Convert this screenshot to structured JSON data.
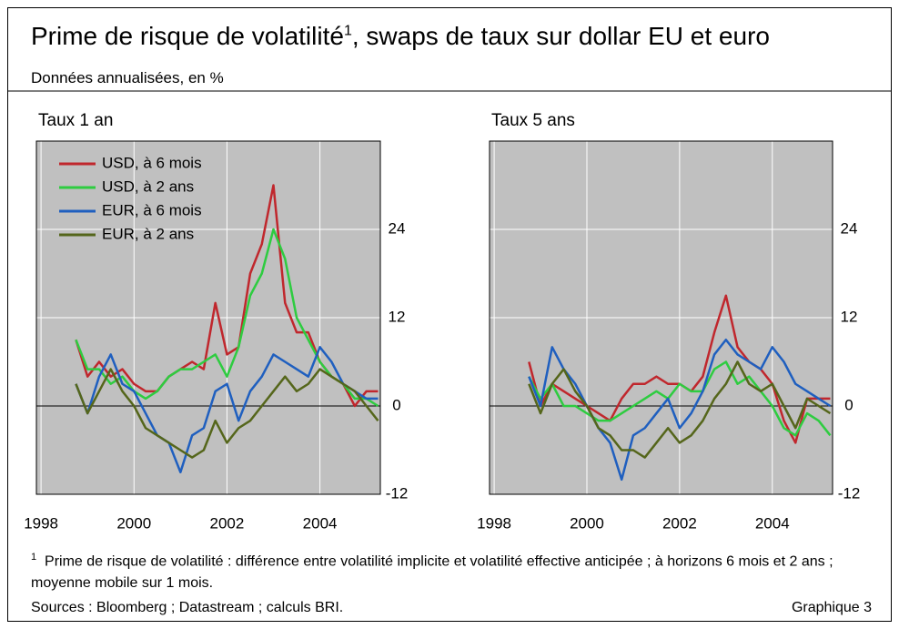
{
  "header": {
    "title": "Prime de risque de volatilité",
    "title_note": "1",
    "title_rest": ", swaps de taux sur dollar EU et euro",
    "subtitle": "Données annualisées, en %"
  },
  "chart_data": [
    {
      "type": "line",
      "title": "Taux 1 an",
      "x": [
        1998.75,
        1999,
        1999.25,
        1999.5,
        1999.75,
        2000,
        2000.25,
        2000.5,
        2000.75,
        2001,
        2001.25,
        2001.5,
        2001.75,
        2002,
        2002.25,
        2002.5,
        2002.75,
        2003,
        2003.25,
        2003.5,
        2003.75,
        2004,
        2004.25,
        2004.5,
        2004.75,
        2005,
        2005.25
      ],
      "series": [
        {
          "name": "USD, à 6 mois",
          "color": "#c0272d",
          "values": [
            9,
            4,
            6,
            4,
            5,
            3,
            2,
            2,
            4,
            5,
            6,
            5,
            14,
            7,
            8,
            18,
            22,
            30,
            14,
            10,
            10,
            6,
            4,
            3,
            0,
            2,
            2
          ]
        },
        {
          "name": "USD, à 2 ans",
          "color": "#2ecc40",
          "values": [
            9,
            5,
            5,
            3,
            4,
            2,
            1,
            2,
            4,
            5,
            5,
            6,
            7,
            4,
            8,
            15,
            18,
            24,
            20,
            12,
            9,
            6,
            4,
            3,
            1,
            1,
            0
          ]
        },
        {
          "name": "EUR, à 6 mois",
          "color": "#1f5fbf",
          "values": [
            3,
            -1,
            4,
            7,
            3,
            2,
            -1,
            -4,
            -5,
            -9,
            -4,
            -3,
            2,
            3,
            -2,
            2,
            4,
            7,
            6,
            5,
            4,
            8,
            6,
            3,
            2,
            1,
            1
          ]
        },
        {
          "name": "EUR, à 2 ans",
          "color": "#55661b",
          "values": [
            3,
            -1,
            2,
            5,
            2,
            0,
            -3,
            -4,
            -5,
            -6,
            -7,
            -6,
            -2,
            -5,
            -3,
            -2,
            0,
            2,
            4,
            2,
            3,
            5,
            4,
            3,
            2,
            0,
            -2
          ]
        }
      ],
      "xlim": [
        1997.9,
        2005.3
      ],
      "ylim": [
        -12,
        36
      ],
      "xticks": [
        1998,
        2000,
        2002,
        2004
      ],
      "yticks": [
        -12,
        0,
        12,
        24
      ],
      "grid": true,
      "zero_line": true,
      "legend": "upper left"
    },
    {
      "type": "line",
      "title": "Taux 5 ans",
      "x": [
        1998.75,
        1999,
        1999.25,
        1999.5,
        1999.75,
        2000,
        2000.25,
        2000.5,
        2000.75,
        2001,
        2001.25,
        2001.5,
        2001.75,
        2002,
        2002.25,
        2002.5,
        2002.75,
        2003,
        2003.25,
        2003.5,
        2003.75,
        2004,
        2004.25,
        2004.5,
        2004.75,
        2005,
        2005.25
      ],
      "series": [
        {
          "color": "#c0272d",
          "values": [
            6,
            0,
            3,
            2,
            1,
            0,
            -1,
            -2,
            1,
            3,
            3,
            4,
            3,
            3,
            2,
            4,
            10,
            15,
            8,
            6,
            5,
            3,
            -2,
            -5,
            1,
            1,
            1
          ]
        },
        {
          "color": "#2ecc40",
          "values": [
            4,
            1,
            3,
            0,
            0,
            -1,
            -2,
            -2,
            -1,
            0,
            1,
            2,
            1,
            3,
            2,
            2,
            5,
            6,
            3,
            4,
            2,
            0,
            -3,
            -4,
            -1,
            -2,
            -4
          ]
        },
        {
          "color": "#1f5fbf",
          "values": [
            4,
            0,
            8,
            5,
            3,
            0,
            -3,
            -5,
            -10,
            -4,
            -3,
            -1,
            1,
            -3,
            -1,
            2,
            7,
            9,
            7,
            6,
            5,
            8,
            6,
            3,
            2,
            1,
            0
          ]
        },
        {
          "color": "#55661b",
          "values": [
            3,
            -1,
            3,
            5,
            2,
            0,
            -3,
            -4,
            -6,
            -6,
            -7,
            -5,
            -3,
            -5,
            -4,
            -2,
            1,
            3,
            6,
            3,
            2,
            3,
            0,
            -3,
            1,
            0,
            -1
          ]
        }
      ],
      "xlim": [
        1997.9,
        2005.3
      ],
      "ylim": [
        -12,
        36
      ],
      "xticks": [
        1998,
        2000,
        2002,
        2004
      ],
      "yticks": [
        -12,
        0,
        12,
        24
      ],
      "grid": true,
      "zero_line": true
    }
  ],
  "footnote": {
    "marker": "1",
    "text": "Prime de risque de volatilité : différence entre volatilité implicite et volatilité effective anticipée ; à horizons 6 mois et 2 ans ; moyenne mobile sur 1 mois."
  },
  "sources": "Sources : Bloomberg ; Datastream ; calculs BRI.",
  "chart_label": "Graphique 3"
}
